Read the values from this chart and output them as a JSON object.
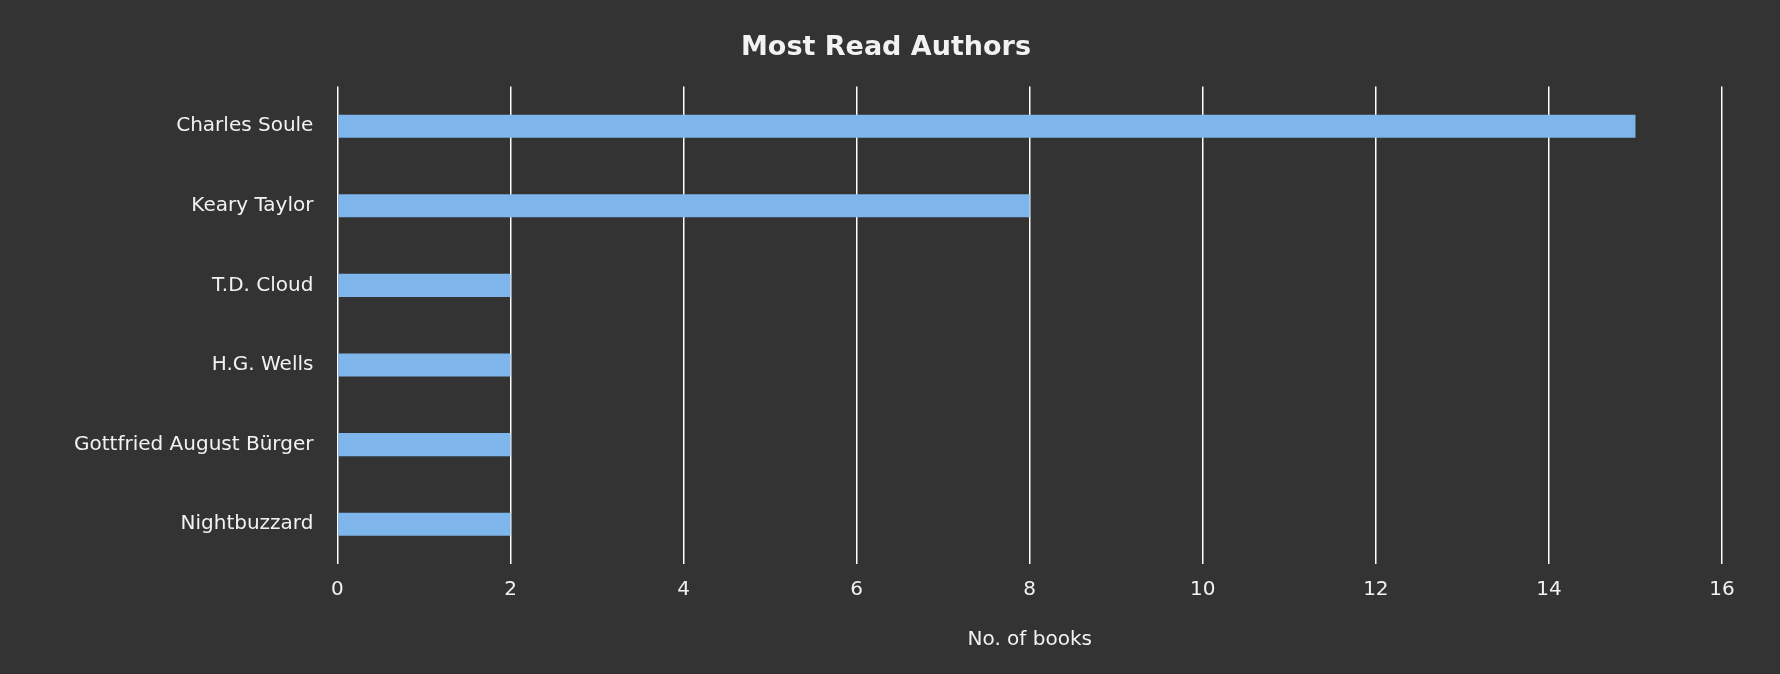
{
  "chart_data": {
    "type": "bar",
    "orientation": "horizontal",
    "title": "Most Read Authors",
    "xlabel": "No. of books",
    "categories": [
      "Charles Soule",
      "Keary Taylor",
      "T.D. Cloud",
      "H.G. Wells",
      "Gottfried August Bürger",
      "Nightbuzzard"
    ],
    "values": [
      15,
      8,
      2,
      2,
      2,
      2
    ],
    "color": "#7eb6ec",
    "xlim": [
      0,
      16
    ],
    "xticks": [
      0,
      2,
      4,
      6,
      8,
      10,
      12,
      14,
      16
    ],
    "grid": "x"
  }
}
